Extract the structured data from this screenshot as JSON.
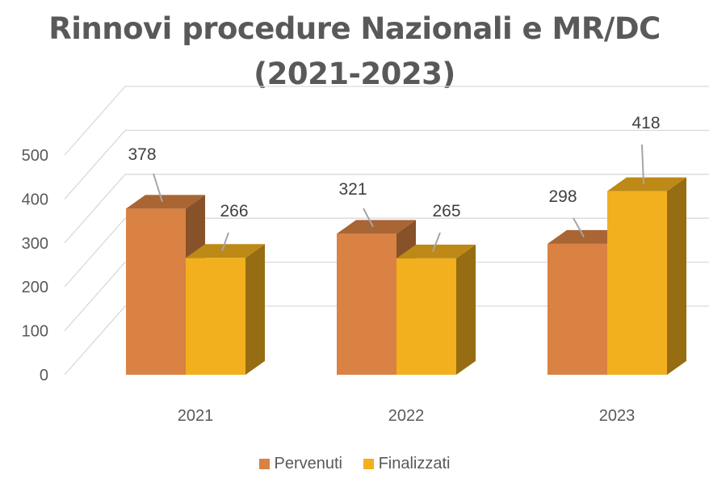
{
  "title_line1": "Rinnovi procedure Nazionali e MR/DC",
  "title_line2": "(2021-2023)",
  "chart_data": {
    "type": "bar",
    "title": "Rinnovi procedure Nazionali e MR/DC (2021-2023)",
    "categories": [
      "2021",
      "2022",
      "2023"
    ],
    "series": [
      {
        "name": "Pervenuti",
        "values": [
          378,
          321,
          298
        ],
        "color": "#D98243"
      },
      {
        "name": "Finalizzati",
        "values": [
          266,
          265,
          418
        ],
        "color": "#F2AF1E"
      }
    ],
    "yticks": [
      "0",
      "100",
      "200",
      "300",
      "400",
      "500"
    ],
    "ylim": [
      0,
      500
    ],
    "grid": true,
    "legend": "bottom",
    "style": "3d-column"
  }
}
